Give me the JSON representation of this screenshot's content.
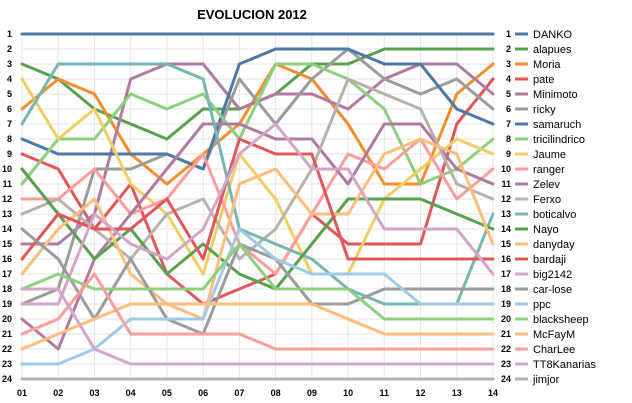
{
  "chart_data": {
    "type": "line",
    "title": "EVOLUCION 2012",
    "x": [
      "01",
      "02",
      "03",
      "04",
      "05",
      "06",
      "07",
      "08",
      "09",
      "10",
      "11",
      "12",
      "13",
      "14"
    ],
    "y_ticks": [
      1,
      2,
      3,
      4,
      5,
      6,
      7,
      8,
      9,
      10,
      11,
      12,
      13,
      14,
      15,
      16,
      17,
      18,
      19,
      20,
      21,
      22,
      23,
      24
    ],
    "y_inverted": true,
    "grid": true,
    "legend_position": "right",
    "series": [
      {
        "name": "DANKO",
        "color": "#4e79a7",
        "values": [
          1,
          1,
          1,
          1,
          1,
          1,
          1,
          1,
          1,
          1,
          1,
          1,
          1,
          1
        ]
      },
      {
        "name": "alapues",
        "color": "#59a14f",
        "values": [
          3,
          4,
          6,
          7,
          8,
          6,
          6,
          5,
          3,
          3,
          2,
          2,
          2,
          2
        ]
      },
      {
        "name": "Moria",
        "color": "#f28e2b",
        "values": [
          6,
          4,
          5,
          9,
          11,
          9,
          7,
          3,
          4,
          7,
          11,
          11,
          5,
          3
        ]
      },
      {
        "name": "pate",
        "color": "#e15759",
        "values": [
          9,
          10,
          14,
          11,
          17,
          19,
          18,
          17,
          13,
          15,
          15,
          15,
          7,
          4
        ]
      },
      {
        "name": "Minimoto",
        "color": "#b07aa1",
        "values": [
          15,
          15,
          13,
          4,
          3,
          3,
          6,
          5,
          5,
          6,
          4,
          3,
          3,
          5
        ]
      },
      {
        "name": "ricky",
        "color": "#9c9c9c",
        "values": [
          19,
          18,
          10,
          10,
          9,
          10,
          4,
          7,
          4,
          2,
          4,
          5,
          4,
          6
        ]
      },
      {
        "name": "samaruch",
        "color": "#4e79a7",
        "values": [
          8,
          9,
          9,
          9,
          9,
          10,
          3,
          2,
          2,
          2,
          3,
          3,
          6,
          7
        ]
      },
      {
        "name": "tricilindrico",
        "color": "#8cd17d",
        "values": [
          11,
          8,
          8,
          5,
          6,
          5,
          8,
          3,
          3,
          4,
          6,
          11,
          10,
          8
        ]
      },
      {
        "name": "Jaume",
        "color": "#f1ce63",
        "values": [
          4,
          8,
          6,
          11,
          13,
          17,
          9,
          12,
          17,
          17,
          12,
          10,
          8,
          9
        ]
      },
      {
        "name": "ranger",
        "color": "#ff9d9a",
        "values": [
          12,
          12,
          10,
          13,
          12,
          9,
          15,
          17,
          13,
          9,
          10,
          8,
          12,
          10
        ]
      },
      {
        "name": "Zelev",
        "color": "#b07aa1",
        "values": [
          20,
          22,
          16,
          13,
          10,
          7,
          7,
          8,
          8,
          11,
          7,
          7,
          10,
          11
        ]
      },
      {
        "name": "Ferxo",
        "color": "#bab0ac",
        "values": [
          13,
          12,
          14,
          16,
          13,
          12,
          16,
          14,
          10,
          4,
          5,
          6,
          11,
          12
        ]
      },
      {
        "name": "boticalvo",
        "color": "#76b7b2",
        "values": [
          7,
          3,
          3,
          3,
          3,
          4,
          14,
          15,
          16,
          18,
          19,
          19,
          19,
          13
        ]
      },
      {
        "name": "Nayo",
        "color": "#59a14f",
        "values": [
          10,
          13,
          16,
          14,
          17,
          15,
          17,
          18,
          15,
          12,
          12,
          12,
          13,
          14
        ]
      },
      {
        "name": "danyday",
        "color": "#ffbe7d",
        "values": [
          17,
          14,
          12,
          17,
          19,
          20,
          11,
          10,
          13,
          13,
          9,
          8,
          9,
          15
        ]
      },
      {
        "name": "bardaji",
        "color": "#e15759",
        "values": [
          16,
          13,
          14,
          14,
          12,
          16,
          8,
          9,
          9,
          16,
          16,
          16,
          16,
          16
        ]
      },
      {
        "name": "big2142",
        "color": "#d4a6c8",
        "values": [
          19,
          19,
          13,
          15,
          16,
          14,
          9,
          7,
          10,
          10,
          14,
          14,
          14,
          17
        ]
      },
      {
        "name": "car-lose",
        "color": "#9c9c9c",
        "values": [
          14,
          16,
          20,
          16,
          20,
          21,
          15,
          16,
          19,
          19,
          18,
          18,
          18,
          18
        ]
      },
      {
        "name": "ppc",
        "color": "#a0cbe8",
        "values": [
          23,
          23,
          22,
          20,
          20,
          20,
          14,
          16,
          17,
          17,
          17,
          19,
          19,
          19
        ]
      },
      {
        "name": "blacksheep",
        "color": "#8cd17d",
        "values": [
          18,
          17,
          18,
          18,
          18,
          18,
          15,
          18,
          18,
          18,
          20,
          20,
          20,
          20
        ]
      },
      {
        "name": "McFayM",
        "color": "#ffbe7d",
        "values": [
          22,
          21,
          20,
          19,
          19,
          19,
          19,
          19,
          19,
          20,
          21,
          21,
          21,
          21
        ]
      },
      {
        "name": "CharLee",
        "color": "#ff9d9a",
        "values": [
          21,
          20,
          17,
          21,
          21,
          21,
          21,
          22,
          22,
          22,
          22,
          22,
          22,
          22
        ]
      },
      {
        "name": "TT8Kanarias",
        "color": "#d4a6c8",
        "values": [
          18,
          18,
          22,
          23,
          23,
          23,
          23,
          23,
          23,
          23,
          23,
          23,
          23,
          23
        ]
      },
      {
        "name": "jimjor",
        "color": "#bab0ac",
        "values": [
          24,
          24,
          24,
          24,
          24,
          24,
          24,
          24,
          24,
          24,
          24,
          24,
          24,
          24
        ]
      }
    ]
  }
}
